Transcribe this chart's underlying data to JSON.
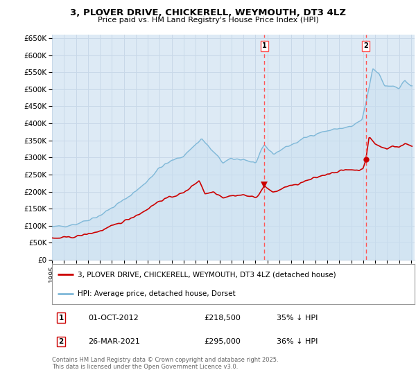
{
  "title": "3, PLOVER DRIVE, CHICKERELL, WEYMOUTH, DT3 4LZ",
  "subtitle": "Price paid vs. HM Land Registry's House Price Index (HPI)",
  "hpi_label": "HPI: Average price, detached house, Dorset",
  "property_label": "3, PLOVER DRIVE, CHICKERELL, WEYMOUTH, DT3 4LZ (detached house)",
  "hpi_color": "#7fb8d8",
  "hpi_fill_color": "#c8dff0",
  "property_color": "#cc0000",
  "vline1_color": "#ff5555",
  "vline2_color": "#ff5555",
  "background_color": "#ffffff",
  "grid_color": "#c8d8e8",
  "plot_bg_color": "#ddeaf5",
  "legend_box_color": "#cc0000",
  "ann1_x": 2012.75,
  "ann2_x": 2021.22,
  "ann1_y": 218500,
  "ann2_y": 295000,
  "annotation1": {
    "num": "1",
    "date": "01-OCT-2012",
    "price": "£218,500",
    "pct": "35% ↓ HPI"
  },
  "annotation2": {
    "num": "2",
    "date": "26-MAR-2021",
    "price": "£295,000",
    "pct": "36% ↓ HPI"
  },
  "footnote": "Contains HM Land Registry data © Crown copyright and database right 2025.\nThis data is licensed under the Open Government Licence v3.0.",
  "ylim": [
    0,
    660000
  ],
  "yticks": [
    0,
    50000,
    100000,
    150000,
    200000,
    250000,
    300000,
    350000,
    400000,
    450000,
    500000,
    550000,
    600000,
    650000
  ],
  "xlim_left": 1995.0,
  "xlim_right": 2025.3
}
